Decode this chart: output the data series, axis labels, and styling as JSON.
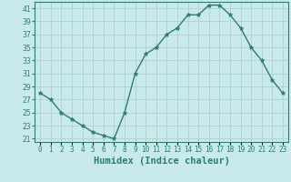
{
  "x": [
    0,
    1,
    2,
    3,
    4,
    5,
    6,
    7,
    8,
    9,
    10,
    11,
    12,
    13,
    14,
    15,
    16,
    17,
    18,
    19,
    20,
    21,
    22,
    23
  ],
  "y": [
    28,
    27,
    25,
    24,
    23,
    22,
    21.5,
    21,
    25,
    31,
    34,
    35,
    37,
    38,
    40,
    40,
    41.5,
    41.5,
    40,
    38,
    35,
    33,
    30,
    28
  ],
  "line_color": "#2e7d6e",
  "marker": "*",
  "marker_size": 3.5,
  "bg_color": "#c8eaea",
  "grid_color": "#b0c8c8",
  "xlabel": "Humidex (Indice chaleur)",
  "ylabel": "",
  "title": "",
  "xlim": [
    -0.5,
    23.5
  ],
  "ylim": [
    20.5,
    42
  ],
  "yticks": [
    21,
    23,
    25,
    27,
    29,
    31,
    33,
    35,
    37,
    39,
    41
  ],
  "xtick_labels": [
    "0",
    "1",
    "2",
    "3",
    "4",
    "5",
    "6",
    "7",
    "8",
    "9",
    "10",
    "11",
    "12",
    "13",
    "14",
    "15",
    "16",
    "17",
    "18",
    "19",
    "20",
    "21",
    "22",
    "23"
  ],
  "font_color": "#2e7d6e",
  "label_fontsize": 7.5,
  "tick_fontsize": 5.5,
  "linewidth": 1.0
}
